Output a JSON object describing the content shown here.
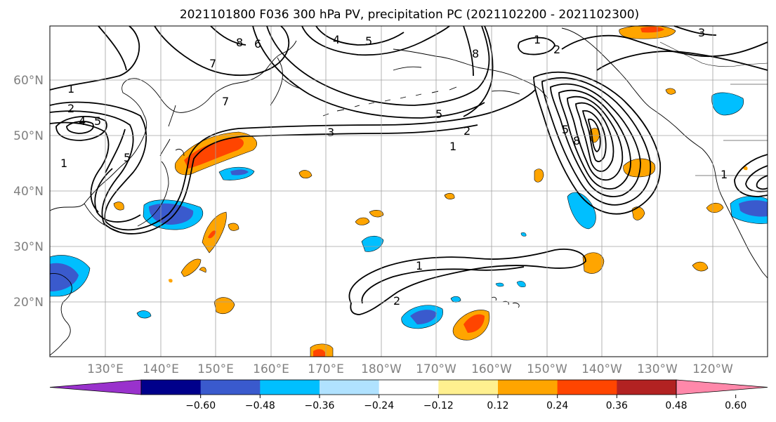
{
  "title": "2021101800 F036 300 hPa PV, precipitation PC (2021102200 - 2021102300)",
  "map": {
    "lon_labels": [
      "130°E",
      "140°E",
      "150°E",
      "160°E",
      "170°E",
      "180°W",
      "170°W",
      "160°W",
      "150°W",
      "140°W",
      "130°W",
      "120°W"
    ],
    "lat_labels": [
      "60°N",
      "50°N",
      "40°N",
      "30°N",
      "20°N"
    ],
    "pv_contour_labels": [
      "1",
      "2",
      "3",
      "4",
      "5",
      "6",
      "7",
      "8"
    ],
    "colors": {
      "ocean": "#ffffff",
      "grid": "#a0a0a0",
      "contour": "#000000",
      "coast": "#000000"
    }
  },
  "colorbar": {
    "tick_labels": [
      "−0.60",
      "−0.48",
      "−0.36",
      "−0.24",
      "−0.12",
      "0.12",
      "0.24",
      "0.36",
      "0.48",
      "0.60"
    ],
    "bins": [
      {
        "color": "#9932cc"
      },
      {
        "color": "#00008b"
      },
      {
        "color": "#3a5acd"
      },
      {
        "color": "#00bfff"
      },
      {
        "color": "#b0e2ff"
      },
      {
        "color": "#ffffff"
      },
      {
        "color": "#fff08f"
      },
      {
        "color": "#ffa500"
      },
      {
        "color": "#ff4500"
      },
      {
        "color": "#b22222"
      },
      {
        "color": "#ff88aa"
      }
    ]
  }
}
